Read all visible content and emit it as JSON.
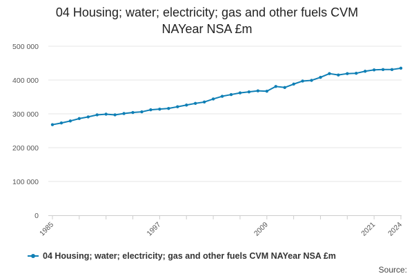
{
  "title_lines": [
    "04 Housing; water; electricity; gas and other fuels CVM",
    "NAYear NSA £m"
  ],
  "source_label": "Source:",
  "colors": {
    "series": "#0f7fb5",
    "grid": "#e6e6e6",
    "axis": "#cccccc"
  },
  "chart_data": {
    "type": "line",
    "title": "04 Housing; water; electricity; gas and other fuels CVM NAYear NSA £m",
    "xlabel": "",
    "ylabel": "",
    "x_tick_labels": [
      "1985",
      "1997",
      "2009",
      "2021",
      "2024"
    ],
    "y_ticks": [
      0,
      100000,
      200000,
      300000,
      400000,
      500000
    ],
    "y_tick_labels": [
      "0",
      "100 000",
      "200 000",
      "300 000",
      "400 000",
      "500 000"
    ],
    "ylim": [
      0,
      500000
    ],
    "xlim": [
      1985,
      2024
    ],
    "grid": true,
    "legend_position": "bottom",
    "x": [
      1985,
      1986,
      1987,
      1988,
      1989,
      1990,
      1991,
      1992,
      1993,
      1994,
      1995,
      1996,
      1997,
      1998,
      1999,
      2000,
      2001,
      2002,
      2003,
      2004,
      2005,
      2006,
      2007,
      2008,
      2009,
      2010,
      2011,
      2012,
      2013,
      2014,
      2015,
      2016,
      2017,
      2018,
      2019,
      2020,
      2021,
      2022,
      2023,
      2024
    ],
    "series": [
      {
        "name": "04 Housing; water; electricity; gas and other fuels CVM NAYear NSA £m",
        "values": [
          268000,
          273000,
          279000,
          286000,
          291000,
          297000,
          299000,
          297000,
          301000,
          304000,
          306000,
          312000,
          314000,
          316000,
          321000,
          326000,
          331000,
          335000,
          344000,
          352000,
          357000,
          362000,
          365000,
          368000,
          367000,
          381000,
          378000,
          388000,
          397000,
          399000,
          408000,
          419000,
          415000,
          419000,
          420000,
          426000,
          430000,
          431000,
          431000,
          435000
        ]
      }
    ]
  }
}
